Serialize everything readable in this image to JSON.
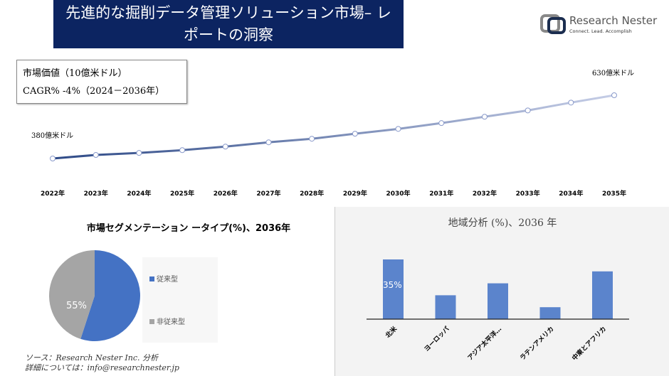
{
  "header": {
    "title_line1": "先進的な掘削データ管理ソリューション市場– レ",
    "title_line2": "ポートの洞察",
    "logo_name": "Research Nester",
    "logo_tagline": "Connect. Lead. Accomplish"
  },
  "kpi": {
    "market_value": "市場価値（10億米ドル）",
    "cagr": "CAGR% -4%（2024－2036年）"
  },
  "chart_data": [
    {
      "type": "line",
      "x": [
        "2022年",
        "2023年",
        "2024年",
        "2025年",
        "2026年",
        "2027年",
        "2028年",
        "2029年",
        "2030年",
        "2031年",
        "2032年",
        "2033年",
        "2034年",
        "2035年"
      ],
      "values": [
        380,
        394,
        402,
        413,
        427,
        444,
        458,
        478,
        497,
        520,
        545,
        570,
        601,
        630
      ],
      "annotations": {
        "start": "380億米ドル",
        "end": "630億米ドル"
      },
      "grid": false,
      "colors": [
        "#2e4a87",
        "#c5cde6"
      ]
    },
    {
      "type": "pie",
      "title": "市場セグメンテーション ータイプ(%)、2036年",
      "labels": [
        "従来型",
        "非従来型"
      ],
      "values": [
        55,
        45
      ],
      "data_label": "55%",
      "colors": [
        "#4472c4",
        "#a5a5a5"
      ],
      "legend": "right"
    },
    {
      "type": "bar",
      "title": "地域分析 (%)、2036 年",
      "categories": [
        "北米",
        "ヨーロッパ",
        "アジア太平洋…",
        "ラテンアメリカ",
        "中東とアフリカ"
      ],
      "values": [
        35,
        14,
        21,
        7,
        28
      ],
      "data_label": "35%",
      "color": "#5b84cc"
    }
  ],
  "footer": {
    "source": "ソース：Research Nester Inc. 分析",
    "contact": "詳細については：info@researchnester.jp"
  }
}
